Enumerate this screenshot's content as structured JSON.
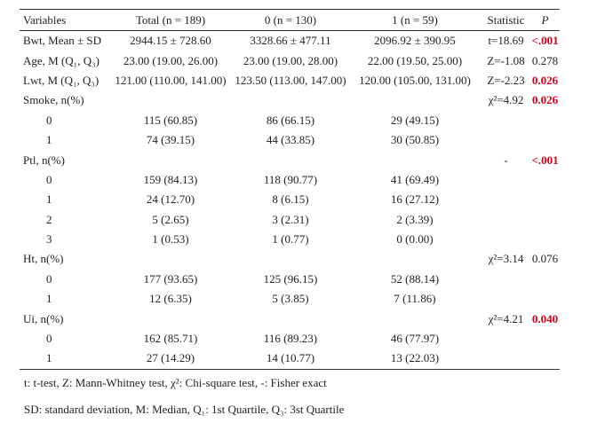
{
  "table": {
    "columns": [
      "Variables",
      "Total (n = 189)",
      "0 (n = 130)",
      "1 (n = 59)",
      "Statistic",
      "P"
    ],
    "rows": [
      [
        "Bwt, Mean ± SD",
        "2944.15 ± 728.60",
        "3328.66 ± 477.11",
        "2096.92 ± 390.95",
        "t=18.69",
        "<.001"
      ],
      [
        "Age, M (Q₁, Q₃)",
        "23.00 (19.00, 26.00)",
        "23.00 (19.00, 28.00)",
        "22.00 (19.50, 25.00)",
        "Z=-1.08",
        "0.278"
      ],
      [
        "Lwt, M (Q₁, Q₃)",
        "121.00 (110.00, 141.00)",
        "123.50 (113.00, 147.00)",
        "120.00 (105.00, 131.00)",
        "Z=-2.23",
        "0.026"
      ],
      [
        "Smoke, n(%)",
        null,
        null,
        null,
        "χ²=4.92",
        "0.026"
      ],
      [
        "0",
        "115 (60.85)",
        "86 (66.15)",
        "29 (49.15)",
        null,
        null
      ],
      [
        "1",
        "74 (39.15)",
        "44 (33.85)",
        "30 (50.85)",
        null,
        null
      ],
      [
        "Ptl, n(%)",
        null,
        null,
        null,
        "-",
        "<.001"
      ],
      [
        "0",
        "159 (84.13)",
        "118 (90.77)",
        "41 (69.49)",
        null,
        null
      ],
      [
        "1",
        "24 (12.70)",
        "8 (6.15)",
        "16 (27.12)",
        null,
        null
      ],
      [
        "2",
        "5 (2.65)",
        "3 (2.31)",
        "2 (3.39)",
        null,
        null
      ],
      [
        "3",
        "1 (0.53)",
        "1 (0.77)",
        "0 (0.00)",
        null,
        null
      ],
      [
        "Ht, n(%)",
        null,
        null,
        null,
        "χ²=3.14",
        "0.076"
      ],
      [
        "0",
        "177 (93.65)",
        "125 (96.15)",
        "52 (88.14)",
        null,
        null
      ],
      [
        "1",
        "12 (6.35)",
        "5 (3.85)",
        "7 (11.86)",
        null,
        null
      ],
      [
        "Ui, n(%)",
        null,
        null,
        null,
        "χ²=4.21",
        "0.040"
      ],
      [
        "0",
        "162 (85.71)",
        "116 (89.23)",
        "46 (77.97)",
        null,
        null
      ],
      [
        "1",
        "27 (14.29)",
        "14 (10.77)",
        "13 (22.03)",
        null,
        null
      ]
    ]
  },
  "footnotes": [
    "t: t-test, Z: Mann-Whitney test, χ²: Chi-square test, -: Fisher exact",
    "SD: standard deviation, M: Median, Q₁: 1st Quartile, Q₃: 3st Quartile"
  ]
}
